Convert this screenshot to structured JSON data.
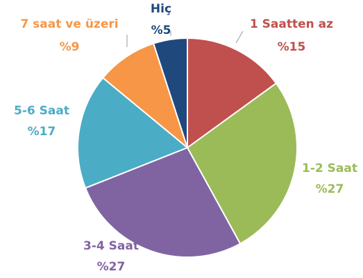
{
  "chart_data": {
    "type": "pie",
    "categories": [
      "1 Saatten az",
      "1-2 Saat",
      "3-4 Saat",
      "5-6 Saat",
      "7 saat ve üzeri",
      "Hiç"
    ],
    "values": [
      15,
      27,
      27,
      17,
      9,
      5
    ],
    "value_labels": [
      "%15",
      "%27",
      "%27",
      "%17",
      "%9",
      "%5"
    ],
    "colors": [
      "#c0504d",
      "#9bbb59",
      "#8064a2",
      "#4bacc6",
      "#f79646",
      "#1f497d"
    ]
  }
}
